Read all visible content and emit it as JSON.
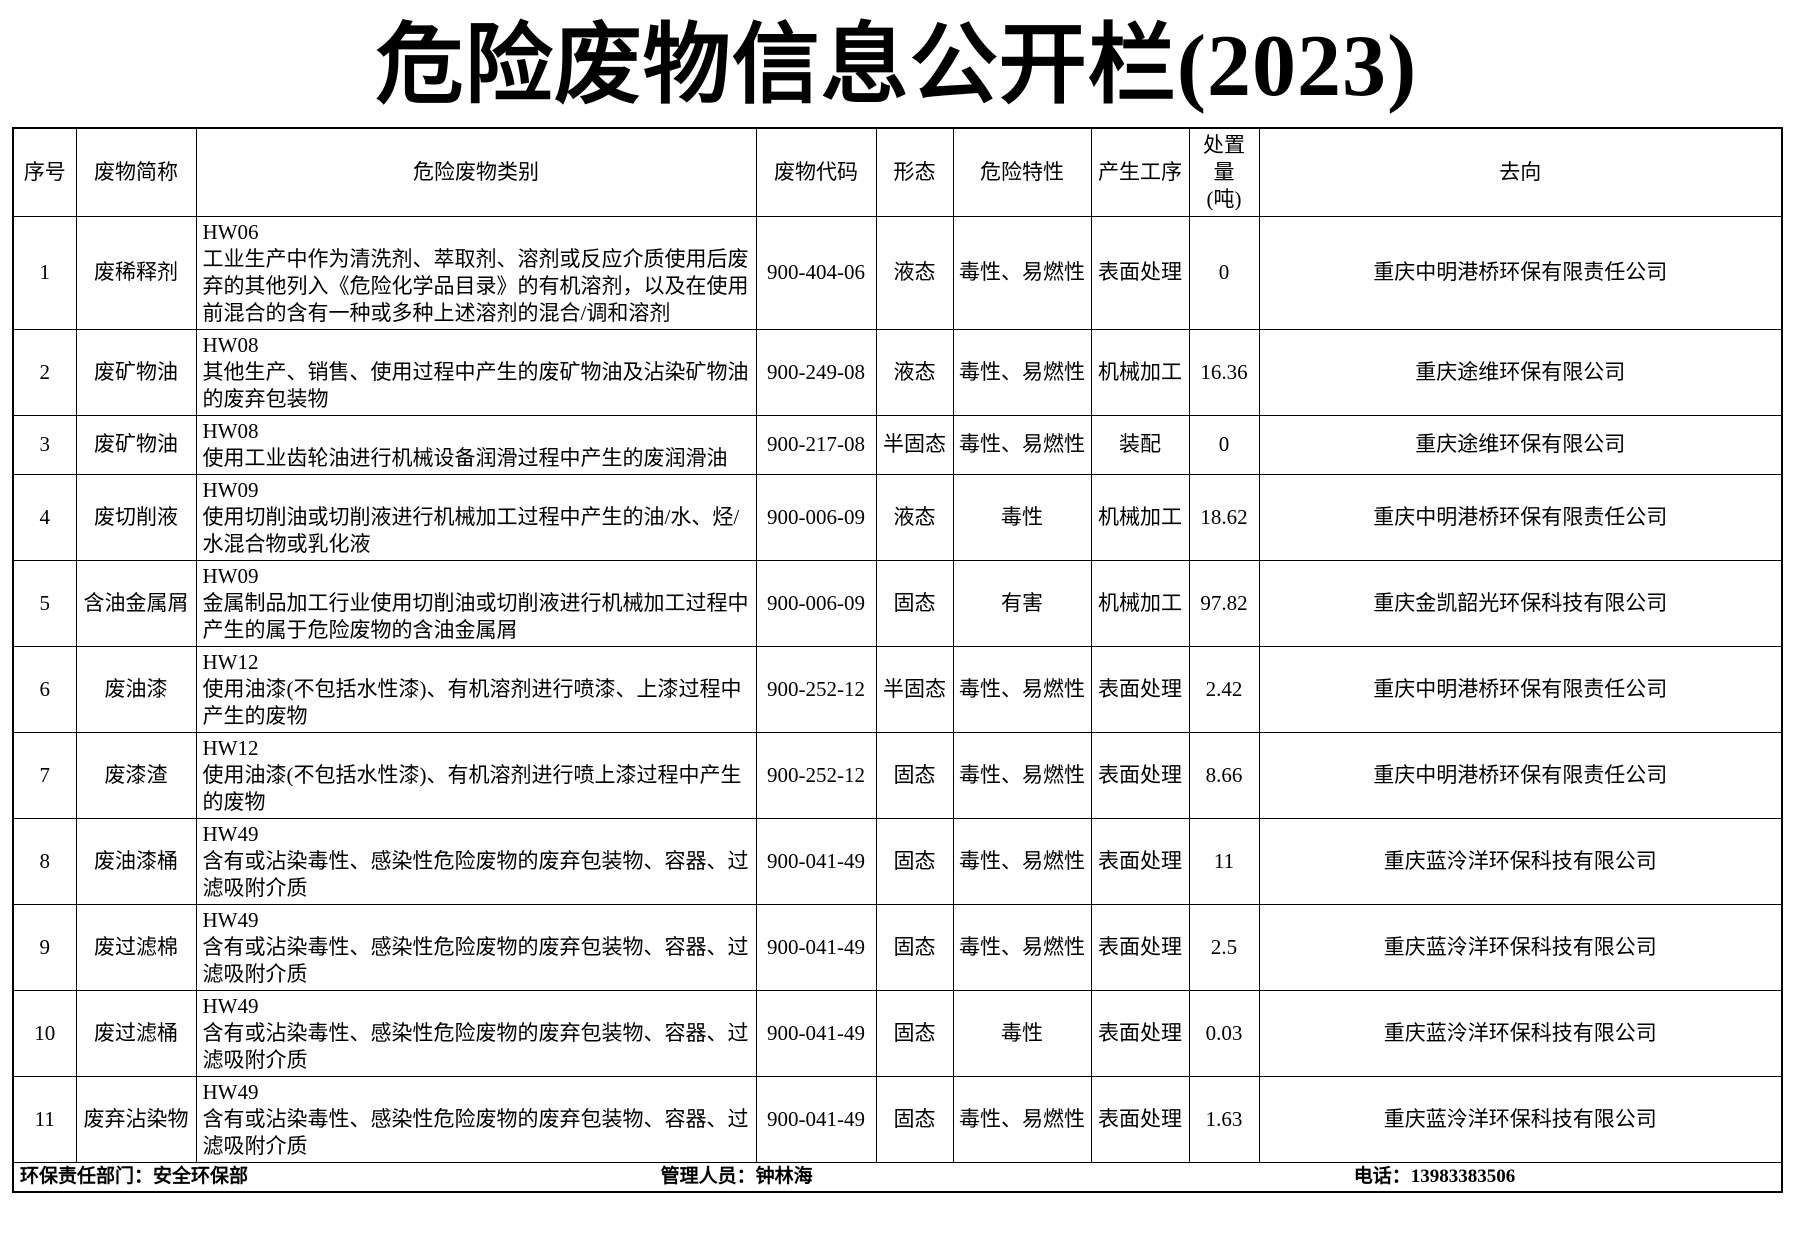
{
  "title": "危险废物信息公开栏(2023)",
  "colors": {
    "background": "#ffffff",
    "text": "#000000",
    "border": "#000000"
  },
  "table": {
    "headers": [
      "序号",
      "废物简称",
      "危险废物类别",
      "废物代码",
      "形态",
      "危险特性",
      "产生工序",
      "处置量\n(吨)",
      "去向"
    ],
    "rows": [
      {
        "no": "1",
        "name": "废稀释剂",
        "category_code": "HW06",
        "category_desc": "工业生产中作为清洗剂、萃取剂、溶剂或反应介质使用后废弃的其他列入《危险化学品目录》的有机溶剂，以及在使用前混合的含有一种或多种上述溶剂的混合/调和溶剂",
        "code": "900-404-06",
        "form": "液态",
        "hazard": "毒性、易燃性",
        "process": "表面处理",
        "amount": "0",
        "destination": "重庆中明港桥环保有限责任公司"
      },
      {
        "no": "2",
        "name": "废矿物油",
        "category_code": "HW08",
        "category_desc": "其他生产、销售、使用过程中产生的废矿物油及沾染矿物油的废弃包装物",
        "code": "900-249-08",
        "form": "液态",
        "hazard": "毒性、易燃性",
        "process": "机械加工",
        "amount": "16.36",
        "destination": "重庆途维环保有限公司"
      },
      {
        "no": "3",
        "name": "废矿物油",
        "category_code": "HW08",
        "category_desc": "使用工业齿轮油进行机械设备润滑过程中产生的废润滑油",
        "code": "900-217-08",
        "form": "半固态",
        "hazard": "毒性、易燃性",
        "process": "装配",
        "amount": "0",
        "destination": "重庆途维环保有限公司"
      },
      {
        "no": "4",
        "name": "废切削液",
        "category_code": "HW09",
        "category_desc": "使用切削油或切削液进行机械加工过程中产生的油/水、烃/水混合物或乳化液",
        "code": "900-006-09",
        "form": "液态",
        "hazard": "毒性",
        "process": "机械加工",
        "amount": "18.62",
        "destination": "重庆中明港桥环保有限责任公司"
      },
      {
        "no": "5",
        "name": "含油金属屑",
        "category_code": "HW09",
        "category_desc": "金属制品加工行业使用切削油或切削液进行机械加工过程中产生的属于危险废物的含油金属屑",
        "code": "900-006-09",
        "form": "固态",
        "hazard": "有害",
        "process": "机械加工",
        "amount": "97.82",
        "destination": "重庆金凯韶光环保科技有限公司"
      },
      {
        "no": "6",
        "name": "废油漆",
        "category_code": "HW12",
        "category_desc": "使用油漆(不包括水性漆)、有机溶剂进行喷漆、上漆过程中产生的废物",
        "code": "900-252-12",
        "form": "半固态",
        "hazard": "毒性、易燃性",
        "process": "表面处理",
        "amount": "2.42",
        "destination": "重庆中明港桥环保有限责任公司"
      },
      {
        "no": "7",
        "name": "废漆渣",
        "category_code": "HW12",
        "category_desc": "使用油漆(不包括水性漆)、有机溶剂进行喷上漆过程中产生的废物",
        "code": "900-252-12",
        "form": "固态",
        "hazard": "毒性、易燃性",
        "process": "表面处理",
        "amount": "8.66",
        "destination": "重庆中明港桥环保有限责任公司"
      },
      {
        "no": "8",
        "name": "废油漆桶",
        "category_code": "HW49",
        "category_desc": "含有或沾染毒性、感染性危险废物的废弃包装物、容器、过滤吸附介质",
        "code": "900-041-49",
        "form": "固态",
        "hazard": "毒性、易燃性",
        "process": "表面处理",
        "amount": "11",
        "destination": "重庆蓝泠洋环保科技有限公司"
      },
      {
        "no": "9",
        "name": "废过滤棉",
        "category_code": "HW49",
        "category_desc": "含有或沾染毒性、感染性危险废物的废弃包装物、容器、过滤吸附介质",
        "code": "900-041-49",
        "form": "固态",
        "hazard": "毒性、易燃性",
        "process": "表面处理",
        "amount": "2.5",
        "destination": "重庆蓝泠洋环保科技有限公司"
      },
      {
        "no": "10",
        "name": "废过滤桶",
        "category_code": "HW49",
        "category_desc": "含有或沾染毒性、感染性危险废物的废弃包装物、容器、过滤吸附介质",
        "code": "900-041-49",
        "form": "固态",
        "hazard": "毒性",
        "process": "表面处理",
        "amount": "0.03",
        "destination": "重庆蓝泠洋环保科技有限公司"
      },
      {
        "no": "11",
        "name": "废弃沾染物",
        "category_code": "HW49",
        "category_desc": "含有或沾染毒性、感染性危险废物的废弃包装物、容器、过滤吸附介质",
        "code": "900-041-49",
        "form": "固态",
        "hazard": "毒性、易燃性",
        "process": "表面处理",
        "amount": "1.63",
        "destination": "重庆蓝泠洋环保科技有限公司"
      }
    ]
  },
  "footer": {
    "department": "环保责任部门：安全环保部",
    "manager": "管理人员：钟林海",
    "phone": "电话：13983383506"
  }
}
